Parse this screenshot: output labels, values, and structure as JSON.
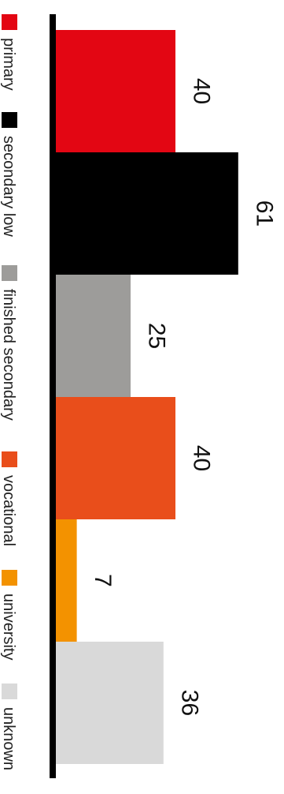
{
  "chart_data": {
    "type": "bar",
    "orientation": "horizontal",
    "categories": [
      "primary",
      "secondary low",
      "finished secondary",
      "vocational",
      "university",
      "unknown"
    ],
    "values": [
      40,
      61,
      25,
      40,
      7,
      36
    ],
    "colors": [
      "#e30613",
      "#000000",
      "#9d9c9a",
      "#e94e1b",
      "#f39200",
      "#d9d9d9"
    ],
    "title": "",
    "xlabel": "",
    "ylabel": "",
    "xlim": [
      0,
      70
    ],
    "grid": false,
    "legend": {
      "position": "left",
      "entries": [
        {
          "label": "primary",
          "color": "#e30613"
        },
        {
          "label": "secondary low",
          "color": "#000000"
        },
        {
          "label": "finished secondary",
          "color": "#9d9c9a"
        },
        {
          "label": "vocational",
          "color": "#e94e1b"
        },
        {
          "label": "university",
          "color": "#f39200"
        },
        {
          "label": "unknown",
          "color": "#d9d9d9"
        }
      ]
    }
  }
}
